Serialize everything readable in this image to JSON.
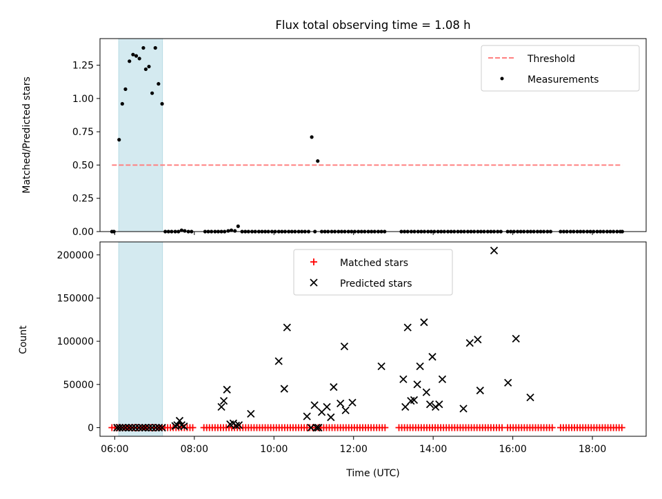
{
  "title": "Flux total observing time = 1.08 h",
  "chart_data": [
    {
      "type": "scatter",
      "panel": "top",
      "ylabel": "Matched/Predicted stars",
      "xlabel": "",
      "ylim": [
        0,
        1.45
      ],
      "yticks": [
        0,
        0.25,
        0.5,
        0.75,
        1.0,
        1.25
      ],
      "ytick_labels": [
        "0.00",
        "0.25",
        "0.50",
        "0.75",
        "1.00",
        "1.25"
      ],
      "xlim": [
        5.63,
        19.35
      ],
      "xticks": [
        6,
        8,
        10,
        12,
        14,
        16,
        18
      ],
      "highlight_span": [
        6.1,
        7.2
      ],
      "highlight_color": "#d4eaf0",
      "threshold": {
        "name": "Threshold",
        "value": 0.5,
        "x_range": [
          5.93,
          18.75
        ],
        "color": "#ff7f7f"
      },
      "legend": {
        "placement": "upper right",
        "entries": [
          "Threshold",
          "Measurements"
        ]
      },
      "series": [
        {
          "name": "Measurements",
          "color": "#000000",
          "points": [
            [
              5.93,
              0
            ],
            [
              5.98,
              0
            ],
            [
              6.11,
              0.69
            ],
            [
              6.19,
              0.96
            ],
            [
              6.27,
              1.07
            ],
            [
              6.37,
              1.28
            ],
            [
              6.46,
              1.33
            ],
            [
              6.54,
              1.32
            ],
            [
              6.62,
              1.3
            ],
            [
              6.72,
              1.38
            ],
            [
              6.78,
              1.22
            ],
            [
              6.86,
              1.24
            ],
            [
              6.94,
              1.04
            ],
            [
              7.02,
              1.38
            ],
            [
              7.1,
              1.11
            ],
            [
              7.19,
              0.96
            ],
            [
              7.27,
              0
            ],
            [
              7.35,
              0
            ],
            [
              7.43,
              0
            ],
            [
              7.52,
              0
            ],
            [
              7.6,
              0
            ],
            [
              7.68,
              0.01
            ],
            [
              7.76,
              0.005
            ],
            [
              7.85,
              0
            ],
            [
              7.93,
              0
            ],
            [
              8.27,
              0
            ],
            [
              8.35,
              0
            ],
            [
              8.43,
              0
            ],
            [
              8.52,
              0
            ],
            [
              8.6,
              0
            ],
            [
              8.68,
              0
            ],
            [
              8.76,
              0
            ],
            [
              8.85,
              0.005
            ],
            [
              8.93,
              0.01
            ],
            [
              9.02,
              0.005
            ],
            [
              9.1,
              0.04
            ],
            [
              9.2,
              0
            ],
            [
              9.28,
              0
            ],
            [
              9.36,
              0
            ],
            [
              9.45,
              0
            ],
            [
              9.53,
              0
            ],
            [
              9.62,
              0
            ],
            [
              9.7,
              0
            ],
            [
              9.78,
              0
            ],
            [
              9.86,
              0
            ],
            [
              9.95,
              0
            ],
            [
              10.03,
              0
            ],
            [
              10.12,
              0
            ],
            [
              10.2,
              0
            ],
            [
              10.28,
              0
            ],
            [
              10.37,
              0
            ],
            [
              10.45,
              0
            ],
            [
              10.53,
              0
            ],
            [
              10.62,
              0
            ],
            [
              10.7,
              0
            ],
            [
              10.78,
              0
            ],
            [
              10.87,
              0
            ],
            [
              10.95,
              0.71
            ],
            [
              11.03,
              0
            ],
            [
              11.1,
              0.53
            ],
            [
              11.2,
              0
            ],
            [
              11.28,
              0
            ],
            [
              11.36,
              0
            ],
            [
              11.45,
              0
            ],
            [
              11.53,
              0
            ],
            [
              11.62,
              0
            ],
            [
              11.7,
              0
            ],
            [
              11.78,
              0
            ],
            [
              11.87,
              0
            ],
            [
              11.95,
              0
            ],
            [
              12.03,
              0
            ],
            [
              12.12,
              0
            ],
            [
              12.2,
              0
            ],
            [
              12.28,
              0
            ],
            [
              12.37,
              0
            ],
            [
              12.45,
              0
            ],
            [
              12.53,
              0
            ],
            [
              12.62,
              0
            ],
            [
              12.7,
              0
            ],
            [
              12.78,
              0
            ],
            [
              13.2,
              0
            ],
            [
              13.28,
              0
            ],
            [
              13.36,
              0
            ],
            [
              13.45,
              0
            ],
            [
              13.53,
              0
            ],
            [
              13.62,
              0
            ],
            [
              13.7,
              0
            ],
            [
              13.78,
              0
            ],
            [
              13.87,
              0
            ],
            [
              13.95,
              0
            ],
            [
              14.03,
              0
            ],
            [
              14.12,
              0
            ],
            [
              14.2,
              0
            ],
            [
              14.28,
              0
            ],
            [
              14.37,
              0
            ],
            [
              14.45,
              0
            ],
            [
              14.53,
              0
            ],
            [
              14.62,
              0
            ],
            [
              14.7,
              0
            ],
            [
              14.78,
              0
            ],
            [
              14.87,
              0
            ],
            [
              14.95,
              0
            ],
            [
              15.03,
              0
            ],
            [
              15.12,
              0
            ],
            [
              15.2,
              0
            ],
            [
              15.28,
              0
            ],
            [
              15.37,
              0
            ],
            [
              15.45,
              0
            ],
            [
              15.53,
              0
            ],
            [
              15.62,
              0
            ],
            [
              15.7,
              0
            ],
            [
              15.87,
              0
            ],
            [
              15.95,
              0
            ],
            [
              16.03,
              0
            ],
            [
              16.12,
              0
            ],
            [
              16.2,
              0
            ],
            [
              16.28,
              0
            ],
            [
              16.37,
              0
            ],
            [
              16.45,
              0
            ],
            [
              16.53,
              0
            ],
            [
              16.62,
              0
            ],
            [
              16.7,
              0
            ],
            [
              16.78,
              0
            ],
            [
              16.87,
              0
            ],
            [
              16.95,
              0
            ],
            [
              17.2,
              0
            ],
            [
              17.28,
              0
            ],
            [
              17.36,
              0
            ],
            [
              17.45,
              0
            ],
            [
              17.53,
              0
            ],
            [
              17.62,
              0
            ],
            [
              17.7,
              0
            ],
            [
              17.78,
              0
            ],
            [
              17.87,
              0
            ],
            [
              17.95,
              0
            ],
            [
              18.03,
              0
            ],
            [
              18.12,
              0
            ],
            [
              18.2,
              0
            ],
            [
              18.28,
              0
            ],
            [
              18.37,
              0
            ],
            [
              18.45,
              0
            ],
            [
              18.53,
              0
            ],
            [
              18.62,
              0
            ],
            [
              18.7,
              0
            ],
            [
              18.75,
              0
            ]
          ]
        }
      ]
    },
    {
      "type": "scatter",
      "panel": "bottom",
      "ylabel": "Count",
      "xlabel": "Time (UTC)",
      "ylim": [
        -10000,
        215000
      ],
      "yticks": [
        0,
        50000,
        100000,
        150000,
        200000
      ],
      "ytick_labels": [
        "0",
        "50000",
        "100000",
        "150000",
        "200000"
      ],
      "xlim": [
        5.63,
        19.35
      ],
      "xticks": [
        6,
        8,
        10,
        12,
        14,
        16,
        18
      ],
      "xtick_labels": [
        "06:00",
        "08:00",
        "10:00",
        "12:00",
        "14:00",
        "16:00",
        "18:00"
      ],
      "highlight_span": [
        6.1,
        7.2
      ],
      "highlight_color": "#d4eaf0",
      "legend": {
        "placement": "upper center",
        "entries": [
          "Matched stars",
          "Predicted stars"
        ]
      },
      "series": [
        {
          "name": "Matched stars",
          "marker": "+",
          "color": "#ff0000",
          "x_range": [
            5.93,
            18.75
          ],
          "x_step": 0.07,
          "gaps": [
            [
              8.0,
              8.2
            ],
            [
              12.85,
              13.1
            ],
            [
              15.75,
              15.82
            ],
            [
              17.0,
              17.15
            ]
          ],
          "value": 0
        },
        {
          "name": "Predicted stars",
          "marker": "x",
          "color": "#000000",
          "points": [
            [
              6.06,
              0
            ],
            [
              6.12,
              0
            ],
            [
              6.19,
              0
            ],
            [
              6.27,
              0
            ],
            [
              6.36,
              0
            ],
            [
              6.44,
              0
            ],
            [
              6.52,
              0
            ],
            [
              6.61,
              0
            ],
            [
              6.69,
              0
            ],
            [
              6.77,
              0
            ],
            [
              6.86,
              0
            ],
            [
              6.94,
              0
            ],
            [
              7.03,
              0
            ],
            [
              7.11,
              0
            ],
            [
              7.19,
              0
            ],
            [
              7.52,
              2000
            ],
            [
              7.57,
              3000
            ],
            [
              7.63,
              8000
            ],
            [
              7.68,
              3000
            ],
            [
              7.74,
              1500
            ],
            [
              8.68,
              24000
            ],
            [
              8.74,
              31000
            ],
            [
              8.82,
              44000
            ],
            [
              8.9,
              4000
            ],
            [
              8.98,
              5000
            ],
            [
              9.05,
              2500
            ],
            [
              9.12,
              3000
            ],
            [
              9.42,
              16000
            ],
            [
              10.12,
              77000
            ],
            [
              10.26,
              45000
            ],
            [
              10.33,
              116000
            ],
            [
              10.83,
              13000
            ],
            [
              10.93,
              0
            ],
            [
              11.02,
              26000
            ],
            [
              11.07,
              0
            ],
            [
              11.12,
              0
            ],
            [
              11.2,
              18000
            ],
            [
              11.33,
              24000
            ],
            [
              11.43,
              12000
            ],
            [
              11.5,
              47000
            ],
            [
              11.67,
              28000
            ],
            [
              11.77,
              94000
            ],
            [
              11.8,
              20000
            ],
            [
              11.97,
              29000
            ],
            [
              12.7,
              71000
            ],
            [
              13.25,
              56000
            ],
            [
              13.3,
              24000
            ],
            [
              13.36,
              116000
            ],
            [
              13.44,
              31000
            ],
            [
              13.52,
              32000
            ],
            [
              13.6,
              50000
            ],
            [
              13.67,
              71000
            ],
            [
              13.77,
              122000
            ],
            [
              13.83,
              41000
            ],
            [
              13.92,
              27000
            ],
            [
              13.98,
              82000
            ],
            [
              14.06,
              24000
            ],
            [
              14.15,
              27000
            ],
            [
              14.23,
              56000
            ],
            [
              14.76,
              22000
            ],
            [
              14.92,
              98000
            ],
            [
              15.12,
              102000
            ],
            [
              15.18,
              43000
            ],
            [
              15.53,
              205000
            ],
            [
              15.88,
              52000
            ],
            [
              16.08,
              103000
            ],
            [
              16.44,
              35000
            ]
          ]
        }
      ]
    }
  ]
}
